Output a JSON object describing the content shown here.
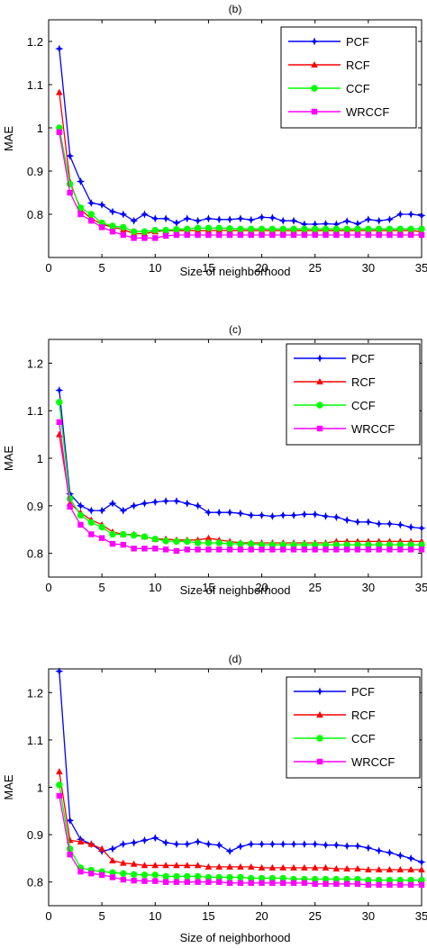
{
  "chart_data": [
    {
      "type": "line",
      "title": "(b)",
      "xlabel": "Size of neighborhood",
      "ylabel": "MAE",
      "xlim": [
        0,
        35
      ],
      "ylim": [
        0.7,
        1.25
      ],
      "xticks": [
        0,
        5,
        10,
        15,
        20,
        25,
        30,
        35
      ],
      "yticks": [
        0.8,
        0.9,
        1,
        1.1,
        1.2
      ],
      "grid": false,
      "legend_position": "top-right",
      "x": [
        1,
        2,
        3,
        4,
        5,
        6,
        7,
        8,
        9,
        10,
        11,
        12,
        13,
        14,
        15,
        16,
        17,
        18,
        19,
        20,
        21,
        22,
        23,
        24,
        25,
        26,
        27,
        28,
        29,
        30,
        31,
        32,
        33,
        34,
        35
      ],
      "series": [
        {
          "name": "PCF",
          "color": "#0000ff",
          "marker": "star",
          "values": [
            1.183,
            0.935,
            0.876,
            0.826,
            0.822,
            0.806,
            0.8,
            0.785,
            0.8,
            0.79,
            0.79,
            0.78,
            0.79,
            0.785,
            0.79,
            0.788,
            0.788,
            0.79,
            0.787,
            0.793,
            0.792,
            0.785,
            0.785,
            0.777,
            0.777,
            0.778,
            0.777,
            0.784,
            0.778,
            0.788,
            0.785,
            0.788,
            0.8,
            0.8,
            0.797
          ]
        },
        {
          "name": "RCF",
          "color": "#ff0000",
          "marker": "triangle",
          "values": [
            1.082,
            0.875,
            0.811,
            0.79,
            0.777,
            0.77,
            0.765,
            0.755,
            0.755,
            0.76,
            0.762,
            0.762,
            0.762,
            0.762,
            0.762,
            0.763,
            0.762,
            0.762,
            0.762,
            0.762,
            0.762,
            0.762,
            0.762,
            0.762,
            0.762,
            0.762,
            0.762,
            0.762,
            0.762,
            0.762,
            0.762,
            0.762,
            0.762,
            0.762,
            0.76
          ]
        },
        {
          "name": "CCF",
          "color": "#00ff00",
          "marker": "circle",
          "values": [
            1.0,
            0.87,
            0.815,
            0.8,
            0.78,
            0.773,
            0.77,
            0.76,
            0.76,
            0.763,
            0.763,
            0.765,
            0.766,
            0.768,
            0.768,
            0.768,
            0.767,
            0.766,
            0.766,
            0.766,
            0.766,
            0.766,
            0.766,
            0.766,
            0.766,
            0.766,
            0.766,
            0.766,
            0.766,
            0.766,
            0.766,
            0.766,
            0.766,
            0.766,
            0.766
          ]
        },
        {
          "name": "WRCCF",
          "color": "#ff00ff",
          "marker": "square",
          "values": [
            0.99,
            0.85,
            0.8,
            0.785,
            0.77,
            0.76,
            0.752,
            0.745,
            0.745,
            0.745,
            0.75,
            0.752,
            0.752,
            0.752,
            0.752,
            0.752,
            0.752,
            0.752,
            0.752,
            0.752,
            0.752,
            0.752,
            0.752,
            0.752,
            0.752,
            0.752,
            0.752,
            0.752,
            0.752,
            0.752,
            0.752,
            0.752,
            0.752,
            0.752,
            0.752
          ]
        }
      ]
    },
    {
      "type": "line",
      "title": "(c)",
      "xlabel": "Size of neighborhood",
      "ylabel": "MAE",
      "xlim": [
        0,
        35
      ],
      "ylim": [
        0.75,
        1.25
      ],
      "xticks": [
        0,
        5,
        10,
        15,
        20,
        25,
        30,
        35
      ],
      "yticks": [
        0.8,
        0.9,
        1,
        1.1,
        1.2
      ],
      "grid": false,
      "legend_position": "top-right",
      "x": [
        1,
        2,
        3,
        4,
        5,
        6,
        7,
        8,
        9,
        10,
        11,
        12,
        13,
        14,
        15,
        16,
        17,
        18,
        19,
        20,
        21,
        22,
        23,
        24,
        25,
        26,
        27,
        28,
        29,
        30,
        31,
        32,
        33,
        34,
        35
      ],
      "series": [
        {
          "name": "PCF",
          "color": "#0000ff",
          "marker": "star",
          "values": [
            1.143,
            0.925,
            0.9,
            0.89,
            0.89,
            0.905,
            0.89,
            0.9,
            0.905,
            0.908,
            0.91,
            0.91,
            0.905,
            0.9,
            0.886,
            0.886,
            0.886,
            0.884,
            0.88,
            0.88,
            0.878,
            0.88,
            0.88,
            0.882,
            0.882,
            0.878,
            0.876,
            0.87,
            0.866,
            0.866,
            0.862,
            0.862,
            0.86,
            0.855,
            0.853
          ]
        },
        {
          "name": "RCF",
          "color": "#ff0000",
          "marker": "triangle",
          "values": [
            1.05,
            0.905,
            0.885,
            0.87,
            0.86,
            0.845,
            0.84,
            0.84,
            0.835,
            0.83,
            0.83,
            0.828,
            0.828,
            0.828,
            0.832,
            0.828,
            0.825,
            0.822,
            0.822,
            0.822,
            0.822,
            0.822,
            0.822,
            0.822,
            0.822,
            0.822,
            0.825,
            0.825,
            0.825,
            0.825,
            0.825,
            0.825,
            0.825,
            0.825,
            0.825
          ]
        },
        {
          "name": "CCF",
          "color": "#00ff00",
          "marker": "circle",
          "values": [
            1.118,
            0.915,
            0.88,
            0.865,
            0.855,
            0.84,
            0.84,
            0.838,
            0.835,
            0.83,
            0.826,
            0.825,
            0.825,
            0.822,
            0.822,
            0.822,
            0.82,
            0.82,
            0.82,
            0.818,
            0.818,
            0.818,
            0.818,
            0.818,
            0.818,
            0.818,
            0.818,
            0.818,
            0.818,
            0.818,
            0.818,
            0.818,
            0.818,
            0.818,
            0.818
          ]
        },
        {
          "name": "WRCCF",
          "color": "#ff00ff",
          "marker": "square",
          "values": [
            1.076,
            0.898,
            0.86,
            0.84,
            0.832,
            0.82,
            0.818,
            0.81,
            0.81,
            0.81,
            0.808,
            0.805,
            0.808,
            0.808,
            0.808,
            0.808,
            0.808,
            0.808,
            0.808,
            0.808,
            0.808,
            0.808,
            0.808,
            0.808,
            0.808,
            0.808,
            0.808,
            0.808,
            0.808,
            0.808,
            0.808,
            0.808,
            0.808,
            0.808,
            0.808
          ]
        }
      ]
    },
    {
      "type": "line",
      "title": "(d)",
      "xlabel": "Size of neighborhood",
      "ylabel": "MAE",
      "xlim": [
        0,
        35
      ],
      "ylim": [
        0.75,
        1.25
      ],
      "xticks": [
        0,
        5,
        10,
        15,
        20,
        25,
        30,
        35
      ],
      "yticks": [
        0.8,
        0.9,
        1,
        1.1,
        1.2
      ],
      "grid": false,
      "legend_position": "top-right",
      "x": [
        1,
        2,
        3,
        4,
        5,
        6,
        7,
        8,
        9,
        10,
        11,
        12,
        13,
        14,
        15,
        16,
        17,
        18,
        19,
        20,
        21,
        22,
        23,
        24,
        25,
        26,
        27,
        28,
        29,
        30,
        31,
        32,
        33,
        34,
        35
      ],
      "series": [
        {
          "name": "PCF",
          "color": "#0000ff",
          "marker": "star",
          "values": [
            1.245,
            0.93,
            0.89,
            0.88,
            0.865,
            0.87,
            0.88,
            0.883,
            0.888,
            0.893,
            0.883,
            0.88,
            0.88,
            0.885,
            0.88,
            0.878,
            0.865,
            0.875,
            0.88,
            0.88,
            0.88,
            0.88,
            0.88,
            0.88,
            0.88,
            0.878,
            0.878,
            0.876,
            0.876,
            0.872,
            0.866,
            0.862,
            0.856,
            0.85,
            0.842
          ]
        },
        {
          "name": "RCF",
          "color": "#ff0000",
          "marker": "triangle",
          "values": [
            1.033,
            0.888,
            0.885,
            0.88,
            0.87,
            0.845,
            0.84,
            0.838,
            0.835,
            0.835,
            0.835,
            0.835,
            0.835,
            0.835,
            0.832,
            0.832,
            0.832,
            0.832,
            0.832,
            0.83,
            0.83,
            0.83,
            0.83,
            0.83,
            0.83,
            0.83,
            0.828,
            0.828,
            0.828,
            0.826,
            0.826,
            0.826,
            0.826,
            0.826,
            0.826
          ]
        },
        {
          "name": "CCF",
          "color": "#00ff00",
          "marker": "circle",
          "values": [
            1.005,
            0.87,
            0.83,
            0.825,
            0.822,
            0.82,
            0.818,
            0.816,
            0.815,
            0.815,
            0.812,
            0.812,
            0.812,
            0.812,
            0.81,
            0.81,
            0.81,
            0.81,
            0.808,
            0.808,
            0.808,
            0.808,
            0.806,
            0.806,
            0.806,
            0.806,
            0.806,
            0.806,
            0.806,
            0.804,
            0.804,
            0.804,
            0.804,
            0.804,
            0.804
          ]
        },
        {
          "name": "WRCCF",
          "color": "#ff00ff",
          "marker": "square",
          "values": [
            0.982,
            0.858,
            0.822,
            0.818,
            0.815,
            0.81,
            0.805,
            0.803,
            0.802,
            0.802,
            0.8,
            0.8,
            0.8,
            0.8,
            0.8,
            0.8,
            0.798,
            0.798,
            0.798,
            0.798,
            0.798,
            0.798,
            0.798,
            0.798,
            0.796,
            0.796,
            0.796,
            0.796,
            0.796,
            0.794,
            0.794,
            0.794,
            0.794,
            0.794,
            0.794
          ]
        }
      ]
    }
  ]
}
